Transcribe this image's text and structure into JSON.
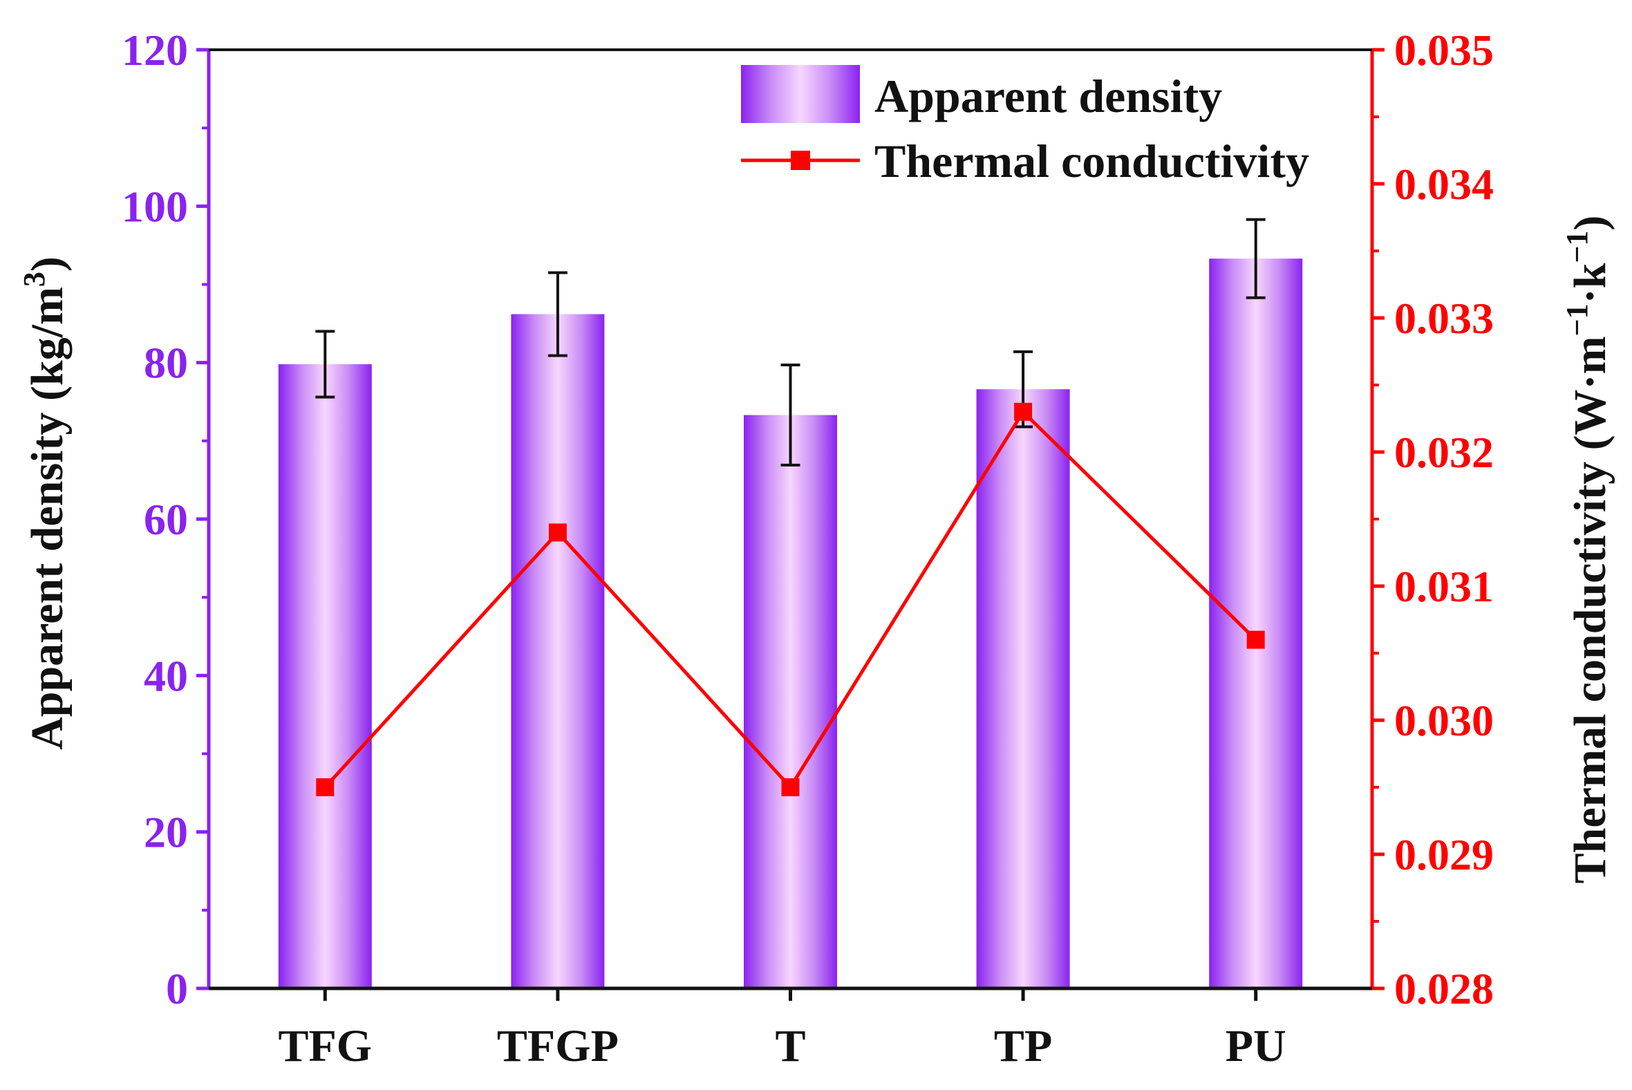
{
  "chart_data": {
    "type": "bar",
    "categories": [
      "TFG",
      "TFGP",
      "T",
      "TP",
      "PU"
    ],
    "series": [
      {
        "name": "Apparent density",
        "type": "bar",
        "axis": "left",
        "values": [
          79.8,
          86.2,
          73.3,
          76.6,
          93.3
        ],
        "error": [
          4.2,
          5.3,
          6.4,
          4.8,
          5.0
        ],
        "color": "#8a22f0"
      },
      {
        "name": "Thermal conductivity",
        "type": "line",
        "axis": "right",
        "values": [
          0.0295,
          0.0314,
          0.0295,
          0.0323,
          0.0306
        ],
        "color": "#ff0000"
      }
    ],
    "y_left": {
      "label": "Apparent density (kg/m",
      "label_sup": "3",
      "label_end": ")",
      "ylim": [
        0,
        120
      ],
      "ticks": [
        "0",
        "20",
        "40",
        "60",
        "80",
        "100",
        "120"
      ],
      "color": "#8a22f0"
    },
    "y_right": {
      "label": "Thermal conductivity (W·m",
      "label_sup1": "−1",
      "label_mid": "·k",
      "label_sup2": "−1",
      "label_end": ")",
      "ylim": [
        0.028,
        0.035
      ],
      "ticks": [
        "0.028",
        "0.029",
        "0.030",
        "0.031",
        "0.032",
        "0.033",
        "0.034",
        "0.035"
      ],
      "color": "#ff0000"
    },
    "legend_position": "top-right",
    "grid": false
  }
}
